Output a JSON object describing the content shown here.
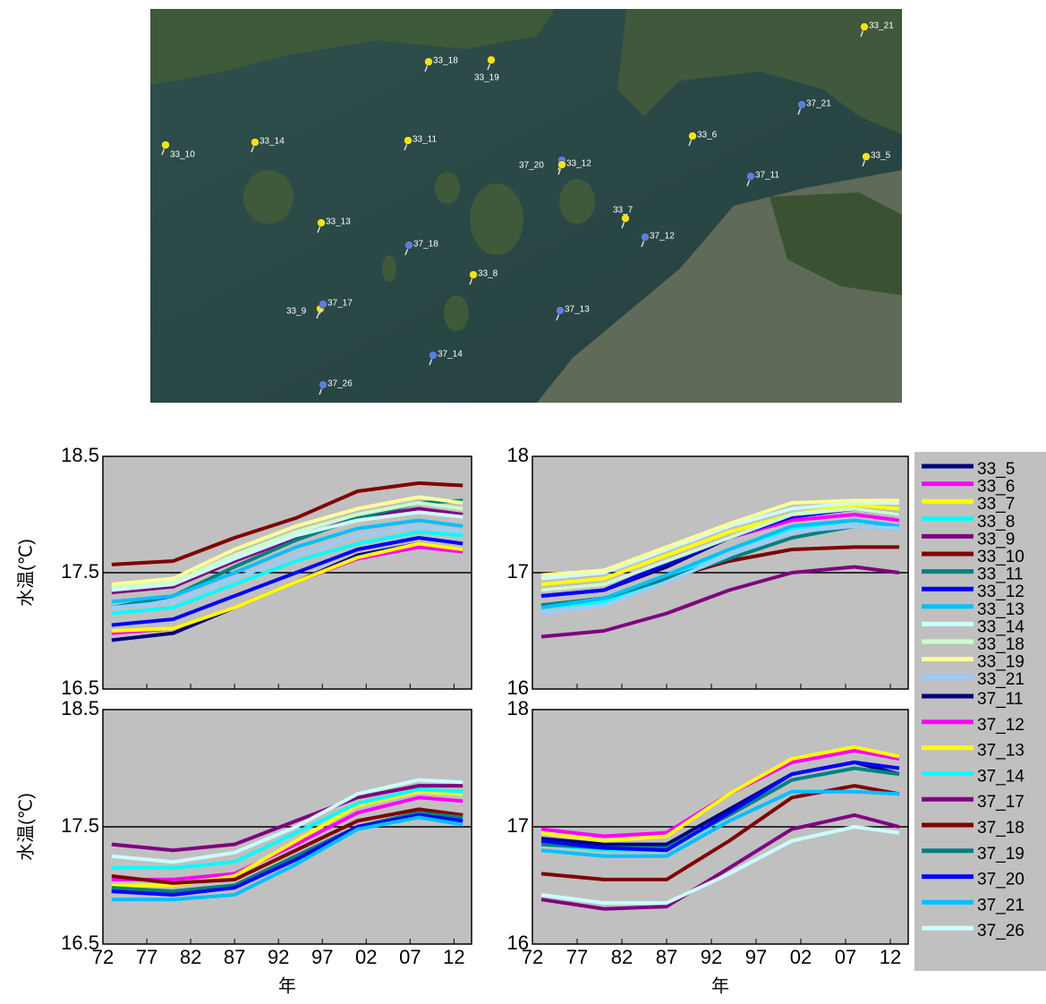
{
  "map": {
    "pins": [
      {
        "label": "33_21",
        "color": "#f2e21a"
      },
      {
        "label": "33_18",
        "color": "#f2e21a"
      },
      {
        "label": "33_19",
        "color": "#f2e21a"
      },
      {
        "label": "37_21",
        "color": "#5b7fe0"
      },
      {
        "label": "33_10",
        "color": "#f2e21a"
      },
      {
        "label": "33_14",
        "color": "#f2e21a"
      },
      {
        "label": "33_11",
        "color": "#f2e21a"
      },
      {
        "label": "33_6",
        "color": "#f2e21a"
      },
      {
        "label": "37_20",
        "color": "#5b7fe0"
      },
      {
        "label": "33_12",
        "color": "#f2e21a"
      },
      {
        "label": "33_5",
        "color": "#f2e21a"
      },
      {
        "label": "37_11",
        "color": "#5b7fe0"
      },
      {
        "label": "33_13",
        "color": "#f2e21a"
      },
      {
        "label": "33_7",
        "color": "#f2e21a"
      },
      {
        "label": "37_18",
        "color": "#5b7fe0"
      },
      {
        "label": "37_12",
        "color": "#5b7fe0"
      },
      {
        "label": "33_8",
        "color": "#f2e21a"
      },
      {
        "label": "33_9",
        "color": "#f2e21a"
      },
      {
        "label": "37_17",
        "color": "#5b7fe0"
      },
      {
        "label": "37_13",
        "color": "#5b7fe0"
      },
      {
        "label": "37_14",
        "color": "#5b7fe0"
      },
      {
        "label": "37_26",
        "color": "#5b7fe0"
      }
    ]
  },
  "chart_data": [
    {
      "type": "line",
      "ylabel": "水温(℃)",
      "x": [
        1973,
        1980,
        1987,
        1994,
        2001,
        2008,
        2013
      ],
      "xlim": [
        1972,
        2014
      ],
      "ylim": [
        16.5,
        18.5
      ],
      "yticks": [
        16.5,
        17.5,
        18.5
      ],
      "hline": 17.5,
      "xticks": [
        {
          "value": 1972,
          "label": "72"
        },
        {
          "value": 1977,
          "label": "77"
        },
        {
          "value": 1982,
          "label": "82"
        },
        {
          "value": 1987,
          "label": "87"
        },
        {
          "value": 1992,
          "label": "92"
        },
        {
          "value": 1997,
          "label": "97"
        },
        {
          "value": 2002,
          "label": "02"
        },
        {
          "value": 2007,
          "label": "07"
        },
        {
          "value": 2012,
          "label": "12"
        }
      ],
      "series": [
        {
          "color": "#000080",
          "values": [
            16.92,
            16.98,
            17.2,
            17.42,
            17.65,
            17.75,
            17.7
          ]
        },
        {
          "color": "#ff00ff",
          "values": [
            16.98,
            17.02,
            17.2,
            17.42,
            17.62,
            17.72,
            17.68
          ]
        },
        {
          "color": "#ffff00",
          "values": [
            17.0,
            17.02,
            17.2,
            17.42,
            17.63,
            17.75,
            17.7
          ]
        },
        {
          "color": "#00ffff",
          "values": [
            17.15,
            17.2,
            17.4,
            17.6,
            17.75,
            17.85,
            17.82
          ]
        },
        {
          "color": "#800080",
          "values": [
            17.33,
            17.38,
            17.6,
            17.8,
            17.97,
            18.05,
            18.0
          ]
        },
        {
          "color": "#800000",
          "values": [
            17.57,
            17.6,
            17.8,
            17.97,
            18.2,
            18.27,
            18.25
          ]
        },
        {
          "color": "#008080",
          "values": [
            17.2,
            17.3,
            17.55,
            17.78,
            17.97,
            18.1,
            18.12
          ]
        },
        {
          "color": "#0000ff",
          "values": [
            17.05,
            17.1,
            17.3,
            17.5,
            17.7,
            17.8,
            17.75
          ]
        },
        {
          "color": "#00c0ff",
          "values": [
            17.25,
            17.3,
            17.5,
            17.72,
            17.88,
            17.95,
            17.9
          ]
        },
        {
          "color": "#ccffff",
          "values": [
            17.35,
            17.4,
            17.62,
            17.82,
            17.95,
            18.02,
            17.98
          ]
        },
        {
          "color": "#ccffcc",
          "values": [
            17.38,
            17.42,
            17.65,
            17.85,
            18.0,
            18.1,
            18.05
          ]
        },
        {
          "color": "#ffff99",
          "values": [
            17.4,
            17.45,
            17.7,
            17.9,
            18.05,
            18.15,
            18.1
          ]
        },
        {
          "color": "#99ccff",
          "values": [
            17.2,
            17.25,
            17.45,
            17.65,
            17.82,
            17.9,
            17.85
          ]
        }
      ]
    },
    {
      "type": "line",
      "x": [
        1973,
        1980,
        1987,
        1994,
        2001,
        2008,
        2013
      ],
      "xlim": [
        1972,
        2014
      ],
      "ylim": [
        16,
        18
      ],
      "yticks": [
        16,
        17,
        18
      ],
      "hline": 17,
      "xticks": [
        {
          "value": 1972,
          "label": "72"
        },
        {
          "value": 1977,
          "label": "77"
        },
        {
          "value": 1982,
          "label": "82"
        },
        {
          "value": 1987,
          "label": "87"
        },
        {
          "value": 1992,
          "label": "92"
        },
        {
          "value": 1997,
          "label": "97"
        },
        {
          "value": 2002,
          "label": "02"
        },
        {
          "value": 2007,
          "label": "07"
        },
        {
          "value": 2012,
          "label": "12"
        }
      ],
      "series": [
        {
          "name": "33_5",
          "color": "#000080",
          "values": [
            16.8,
            16.85,
            17.05,
            17.3,
            17.48,
            17.55,
            17.5
          ]
        },
        {
          "name": "33_6",
          "color": "#ff00ff",
          "values": [
            16.85,
            16.9,
            17.1,
            17.3,
            17.45,
            17.5,
            17.45
          ]
        },
        {
          "name": "33_7",
          "color": "#ffff00",
          "values": [
            16.9,
            16.95,
            17.15,
            17.35,
            17.5,
            17.58,
            17.55
          ]
        },
        {
          "name": "33_8",
          "color": "#00ffff",
          "values": [
            16.7,
            16.75,
            16.95,
            17.2,
            17.38,
            17.45,
            17.4
          ]
        },
        {
          "name": "33_9",
          "color": "#800080",
          "values": [
            16.45,
            16.5,
            16.65,
            16.85,
            17.0,
            17.05,
            17.0
          ]
        },
        {
          "name": "33_10",
          "color": "#800000",
          "values": [
            16.72,
            16.78,
            16.95,
            17.1,
            17.2,
            17.22,
            17.22
          ]
        },
        {
          "name": "33_11",
          "color": "#008080",
          "values": [
            16.72,
            16.78,
            16.95,
            17.12,
            17.3,
            17.4,
            17.38
          ]
        },
        {
          "name": "33_12",
          "color": "#0000ff",
          "values": [
            16.8,
            16.85,
            17.08,
            17.3,
            17.48,
            17.55,
            17.5
          ]
        },
        {
          "name": "33_13",
          "color": "#00c0ff",
          "values": [
            16.7,
            16.78,
            16.98,
            17.2,
            17.4,
            17.45,
            17.4
          ]
        },
        {
          "name": "33_14",
          "color": "#ccffff",
          "values": [
            16.95,
            17.0,
            17.2,
            17.4,
            17.55,
            17.6,
            17.6
          ]
        },
        {
          "name": "33_18",
          "color": "#ccffcc",
          "values": [
            16.85,
            16.9,
            17.1,
            17.3,
            17.5,
            17.55,
            17.5
          ]
        },
        {
          "name": "33_19",
          "color": "#ffff99",
          "values": [
            16.98,
            17.02,
            17.22,
            17.42,
            17.6,
            17.62,
            17.62
          ]
        },
        {
          "name": "33_21",
          "color": "#99ccff",
          "values": [
            16.65,
            16.72,
            16.92,
            17.15,
            17.35,
            17.4,
            17.38
          ]
        }
      ]
    },
    {
      "type": "line",
      "ylabel": "水温(℃)",
      "xlabel": "年",
      "x": [
        1973,
        1980,
        1987,
        1994,
        2001,
        2008,
        2013
      ],
      "xlim": [
        1972,
        2014
      ],
      "ylim": [
        16.5,
        18.5
      ],
      "yticks": [
        16.5,
        17.5,
        18.5
      ],
      "hline": 17.5,
      "xticks": [
        {
          "value": 1972,
          "label": "72"
        },
        {
          "value": 1977,
          "label": "77"
        },
        {
          "value": 1982,
          "label": "82"
        },
        {
          "value": 1987,
          "label": "87"
        },
        {
          "value": 1992,
          "label": "92"
        },
        {
          "value": 1997,
          "label": "97"
        },
        {
          "value": 2002,
          "label": "02"
        },
        {
          "value": 2007,
          "label": "07"
        },
        {
          "value": 2012,
          "label": "12"
        }
      ],
      "series": [
        {
          "color": "#000080",
          "values": [
            16.95,
            16.95,
            17.0,
            17.25,
            17.5,
            17.62,
            17.6
          ]
        },
        {
          "color": "#ff00ff",
          "values": [
            17.05,
            17.05,
            17.1,
            17.35,
            17.62,
            17.75,
            17.72
          ]
        },
        {
          "color": "#ffff00",
          "values": [
            17.0,
            17.0,
            17.08,
            17.38,
            17.68,
            17.8,
            17.78
          ]
        },
        {
          "color": "#00ffff",
          "values": [
            17.15,
            17.15,
            17.2,
            17.45,
            17.7,
            17.82,
            17.8
          ]
        },
        {
          "color": "#800080",
          "values": [
            17.35,
            17.3,
            17.35,
            17.55,
            17.75,
            17.85,
            17.85
          ]
        },
        {
          "color": "#800000",
          "values": [
            17.08,
            17.02,
            17.05,
            17.3,
            17.55,
            17.65,
            17.6
          ]
        },
        {
          "color": "#008080",
          "values": [
            16.98,
            16.95,
            17.0,
            17.25,
            17.5,
            17.62,
            17.58
          ]
        },
        {
          "color": "#0000ff",
          "values": [
            16.95,
            16.92,
            16.98,
            17.22,
            17.5,
            17.6,
            17.55
          ]
        },
        {
          "color": "#00c0ff",
          "values": [
            16.88,
            16.88,
            16.92,
            17.18,
            17.48,
            17.58,
            17.52
          ]
        },
        {
          "color": "#ccffff",
          "values": [
            17.25,
            17.2,
            17.28,
            17.5,
            17.78,
            17.9,
            17.88
          ]
        }
      ]
    },
    {
      "type": "line",
      "xlabel": "年",
      "x": [
        1973,
        1980,
        1987,
        1994,
        2001,
        2008,
        2013
      ],
      "xlim": [
        1972,
        2014
      ],
      "ylim": [
        16,
        18
      ],
      "yticks": [
        16,
        17,
        18
      ],
      "hline": 17,
      "xticks": [
        {
          "value": 1972,
          "label": "72"
        },
        {
          "value": 1977,
          "label": "77"
        },
        {
          "value": 1982,
          "label": "82"
        },
        {
          "value": 1987,
          "label": "87"
        },
        {
          "value": 1992,
          "label": "92"
        },
        {
          "value": 1997,
          "label": "97"
        },
        {
          "value": 2002,
          "label": "02"
        },
        {
          "value": 2007,
          "label": "07"
        },
        {
          "value": 2012,
          "label": "12"
        }
      ],
      "series": [
        {
          "name": "37_11",
          "color": "#000080",
          "values": [
            16.9,
            16.85,
            16.85,
            17.15,
            17.45,
            17.55,
            17.45
          ]
        },
        {
          "name": "37_12",
          "color": "#ff00ff",
          "values": [
            16.98,
            16.92,
            16.95,
            17.28,
            17.55,
            17.65,
            17.58
          ]
        },
        {
          "name": "37_13",
          "color": "#ffff00",
          "values": [
            16.95,
            16.88,
            16.92,
            17.28,
            17.58,
            17.68,
            17.6
          ]
        },
        {
          "name": "37_14",
          "color": "#00ffff",
          "values": [
            16.85,
            16.8,
            16.8,
            17.1,
            17.4,
            17.5,
            17.45
          ]
        },
        {
          "name": "37_17",
          "color": "#800080",
          "values": [
            16.38,
            16.3,
            16.32,
            16.65,
            16.98,
            17.1,
            17.0
          ]
        },
        {
          "name": "37_18",
          "color": "#800000",
          "values": [
            16.6,
            16.55,
            16.55,
            16.88,
            17.25,
            17.35,
            17.28
          ]
        },
        {
          "name": "37_19",
          "color": "#008080",
          "values": [
            16.85,
            16.82,
            16.82,
            17.1,
            17.4,
            17.5,
            17.45
          ]
        },
        {
          "name": "37_20",
          "color": "#0000ff",
          "values": [
            16.88,
            16.82,
            16.8,
            17.12,
            17.45,
            17.55,
            17.5
          ]
        },
        {
          "name": "37_21",
          "color": "#00c0ff",
          "values": [
            16.8,
            16.75,
            16.75,
            17.05,
            17.3,
            17.3,
            17.28
          ]
        },
        {
          "name": "37_26",
          "color": "#ccffff",
          "values": [
            16.42,
            16.35,
            16.35,
            16.6,
            16.88,
            17.0,
            16.95
          ]
        }
      ]
    }
  ]
}
